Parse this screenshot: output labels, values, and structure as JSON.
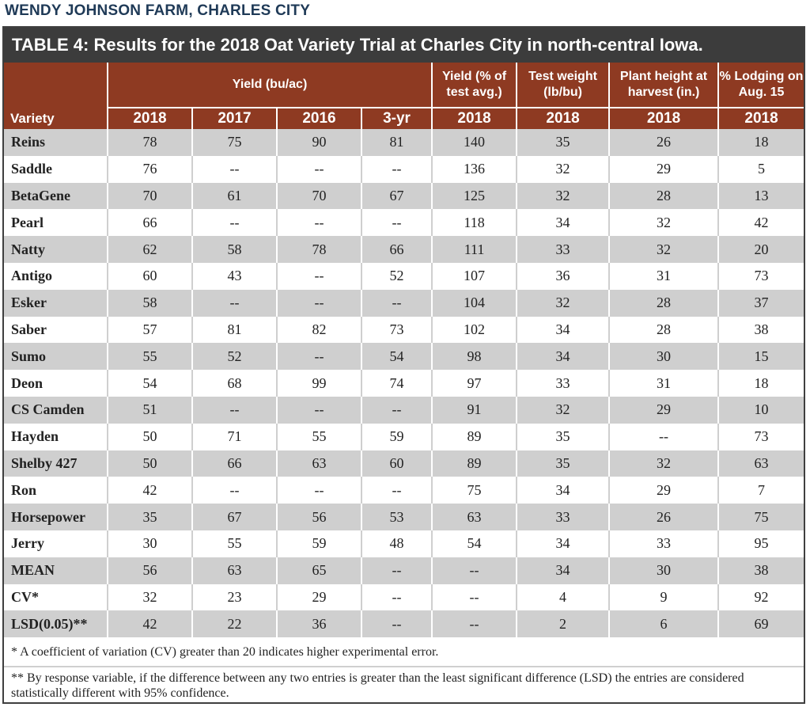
{
  "page_header": "WENDY JOHNSON FARM, CHARLES CITY",
  "title": {
    "label": "TABLE 4:",
    "text": "Results for the 2018 Oat Variety Trial at Charles City in north-central Iowa."
  },
  "headers": {
    "variety": "Variety",
    "yield_group": "Yield (bu/ac)",
    "yield_pct": "Yield (% of test avg.)",
    "test_weight": "Test weight (lb/bu)",
    "plant_height": "Plant height at harvest (in.)",
    "lodging": "% Lodging on Aug. 15",
    "sub": [
      "2018",
      "2017",
      "2016",
      "3-yr",
      "2018",
      "2018",
      "2018",
      "2018"
    ]
  },
  "rows": [
    {
      "variety": "Reins",
      "y2018": "78",
      "y2017": "75",
      "y2016": "90",
      "y3": "81",
      "pct": "140",
      "tw": "35",
      "ph": "26",
      "lodg": "18"
    },
    {
      "variety": "Saddle",
      "y2018": "76",
      "y2017": "--",
      "y2016": "--",
      "y3": "--",
      "pct": "136",
      "tw": "32",
      "ph": "29",
      "lodg": "5"
    },
    {
      "variety": "BetaGene",
      "y2018": "70",
      "y2017": "61",
      "y2016": "70",
      "y3": "67",
      "pct": "125",
      "tw": "32",
      "ph": "28",
      "lodg": "13"
    },
    {
      "variety": "Pearl",
      "y2018": "66",
      "y2017": "--",
      "y2016": "--",
      "y3": "--",
      "pct": "118",
      "tw": "34",
      "ph": "32",
      "lodg": "42"
    },
    {
      "variety": "Natty",
      "y2018": "62",
      "y2017": "58",
      "y2016": "78",
      "y3": "66",
      "pct": "111",
      "tw": "33",
      "ph": "32",
      "lodg": "20"
    },
    {
      "variety": "Antigo",
      "y2018": "60",
      "y2017": "43",
      "y2016": "--",
      "y3": "52",
      "pct": "107",
      "tw": "36",
      "ph": "31",
      "lodg": "73"
    },
    {
      "variety": "Esker",
      "y2018": "58",
      "y2017": "--",
      "y2016": "--",
      "y3": "--",
      "pct": "104",
      "tw": "32",
      "ph": "28",
      "lodg": "37"
    },
    {
      "variety": "Saber",
      "y2018": "57",
      "y2017": "81",
      "y2016": "82",
      "y3": "73",
      "pct": "102",
      "tw": "34",
      "ph": "28",
      "lodg": "38"
    },
    {
      "variety": "Sumo",
      "y2018": "55",
      "y2017": "52",
      "y2016": "--",
      "y3": "54",
      "pct": "98",
      "tw": "34",
      "ph": "30",
      "lodg": "15"
    },
    {
      "variety": "Deon",
      "y2018": "54",
      "y2017": "68",
      "y2016": "99",
      "y3": "74",
      "pct": "97",
      "tw": "33",
      "ph": "31",
      "lodg": "18"
    },
    {
      "variety": "CS Camden",
      "y2018": "51",
      "y2017": "--",
      "y2016": "--",
      "y3": "--",
      "pct": "91",
      "tw": "32",
      "ph": "29",
      "lodg": "10"
    },
    {
      "variety": "Hayden",
      "y2018": "50",
      "y2017": "71",
      "y2016": "55",
      "y3": "59",
      "pct": "89",
      "tw": "35",
      "ph": "--",
      "lodg": "73"
    },
    {
      "variety": "Shelby 427",
      "y2018": "50",
      "y2017": "66",
      "y2016": "63",
      "y3": "60",
      "pct": "89",
      "tw": "35",
      "ph": "32",
      "lodg": "63"
    },
    {
      "variety": "Ron",
      "y2018": "42",
      "y2017": "--",
      "y2016": "--",
      "y3": "--",
      "pct": "75",
      "tw": "34",
      "ph": "29",
      "lodg": "7"
    },
    {
      "variety": "Horsepower",
      "y2018": "35",
      "y2017": "67",
      "y2016": "56",
      "y3": "53",
      "pct": "63",
      "tw": "33",
      "ph": "26",
      "lodg": "75"
    },
    {
      "variety": "Jerry",
      "y2018": "30",
      "y2017": "55",
      "y2016": "59",
      "y3": "48",
      "pct": "54",
      "tw": "34",
      "ph": "33",
      "lodg": "95"
    },
    {
      "variety": "MEAN",
      "y2018": "56",
      "y2017": "63",
      "y2016": "65",
      "y3": "--",
      "pct": "--",
      "tw": "34",
      "ph": "30",
      "lodg": "38"
    },
    {
      "variety": "CV*",
      "y2018": "32",
      "y2017": "23",
      "y2016": "29",
      "y3": "--",
      "pct": "--",
      "tw": "4",
      "ph": "9",
      "lodg": "92"
    },
    {
      "variety": "LSD(0.05)**",
      "y2018": "42",
      "y2017": "22",
      "y2016": "36",
      "y3": "--",
      "pct": "--",
      "tw": "2",
      "ph": "6",
      "lodg": "69"
    }
  ],
  "notes": {
    "cv": "* A coefficient of variation (CV) greater than 20 indicates higher experimental error.",
    "lsd": "** By response variable, if the difference between any two entries is greater than the least significant difference (LSD) the entries are considered statistically different with 95% confidence."
  },
  "colors": {
    "header_bg": "#8e3a22",
    "title_bg": "#3c3c3c",
    "row_shade": "#cfcfcf",
    "page_header_text": "#1f3a57"
  }
}
